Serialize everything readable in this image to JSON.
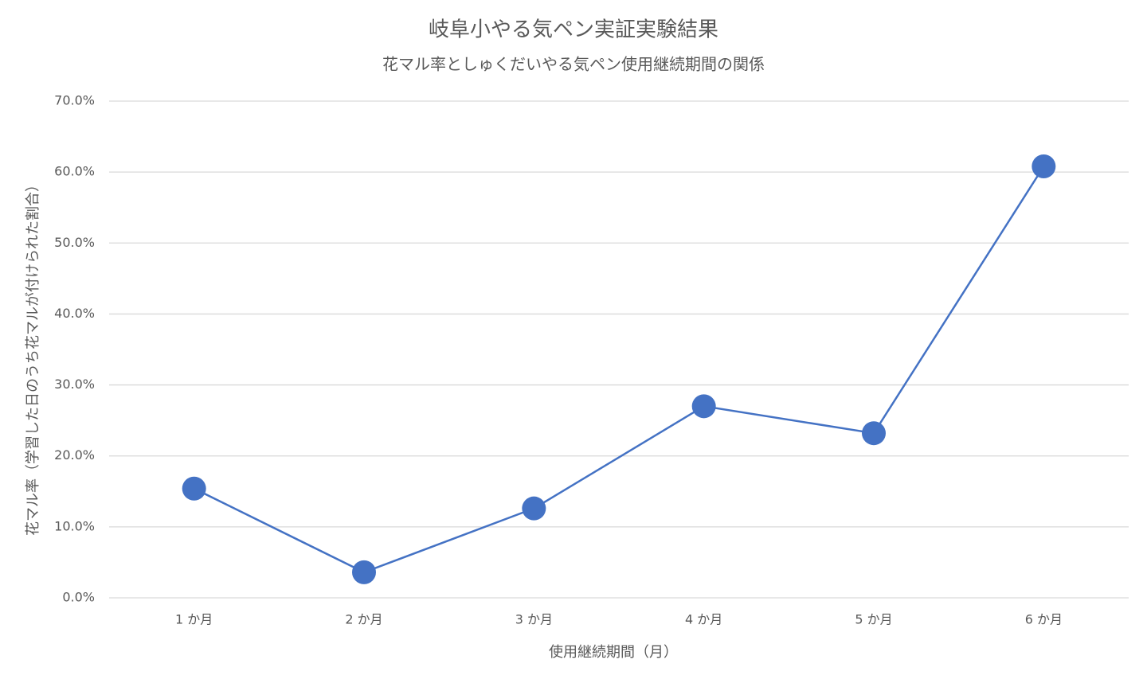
{
  "chart_data": {
    "type": "line",
    "title": "岐阜小やる気ペン実証実験結果",
    "subtitle": "花マル率としゅくだいやる気ペン使用継続期間の関係",
    "x_label": "使用継続期間（月）",
    "y_label": "花マル率（学習した日のうち花マルが付けられた割合）",
    "categories": [
      "1 か月",
      "2 か月",
      "3 か月",
      "4 か月",
      "5 か月",
      "6 か月"
    ],
    "series": [
      {
        "name": "花マル率",
        "color": "#4472c4",
        "values": [
          15.4,
          3.6,
          12.6,
          27.0,
          23.2,
          60.8
        ]
      }
    ],
    "ylim": [
      0,
      70
    ],
    "yticks": [
      {
        "value": 0,
        "label": "0.0%"
      },
      {
        "value": 10,
        "label": "10.0%"
      },
      {
        "value": 20,
        "label": "20.0%"
      },
      {
        "value": 30,
        "label": "30.0%"
      },
      {
        "value": 40,
        "label": "40.0%"
      },
      {
        "value": 50,
        "label": "50.0%"
      },
      {
        "value": 60,
        "label": "60.0%"
      },
      {
        "value": 70,
        "label": "70.0%"
      }
    ],
    "grid": true
  }
}
